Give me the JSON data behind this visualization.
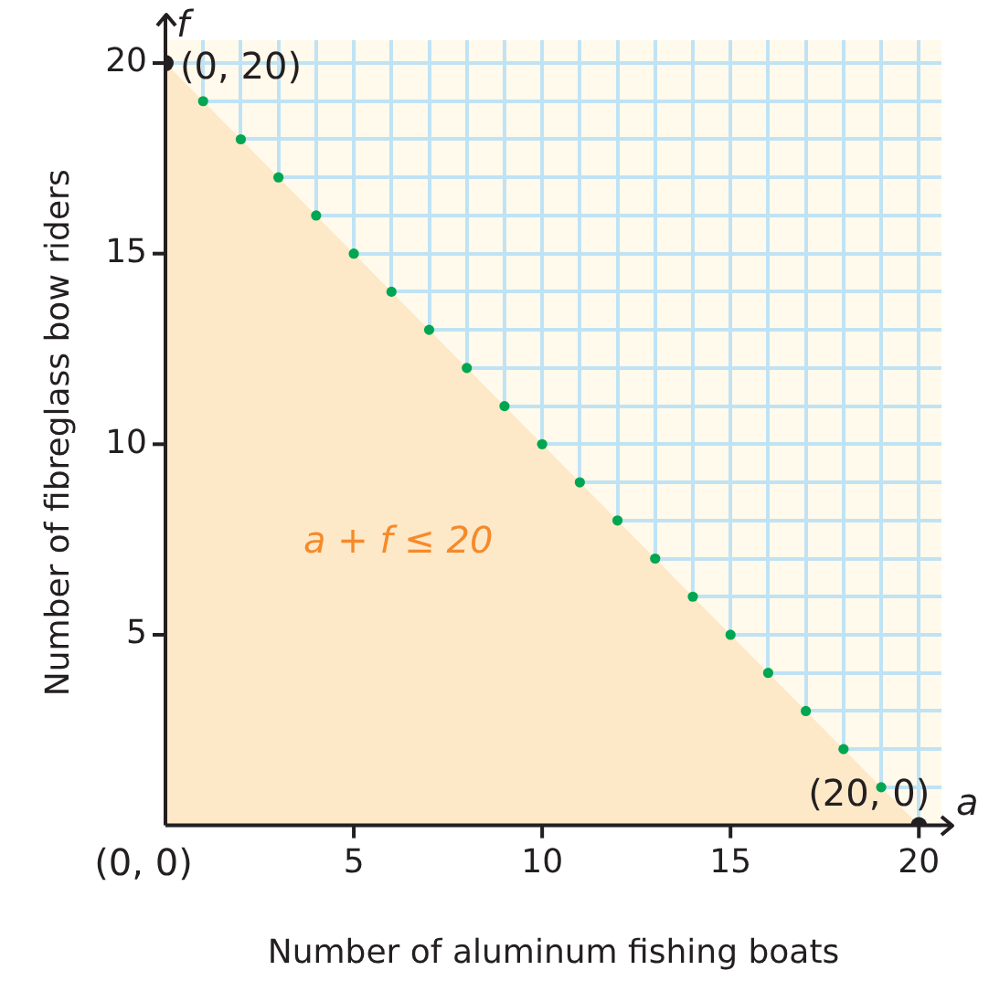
{
  "chart_data": {
    "type": "area",
    "xlabel": "Number of aluminum fishing boats",
    "ylabel": "Number of fibreglass bow riders",
    "xlim": [
      0,
      20.6
    ],
    "ylim": [
      0,
      20.6
    ],
    "xticks": [
      {
        "value": 0,
        "label": null
      },
      {
        "value": 1,
        "label": null
      },
      {
        "value": 2,
        "label": null
      },
      {
        "value": 3,
        "label": null
      },
      {
        "value": 4,
        "label": null
      },
      5,
      {
        "value": 6,
        "label": null
      },
      {
        "value": 7,
        "label": null
      },
      {
        "value": 8,
        "label": null
      },
      {
        "value": 9,
        "label": null
      },
      10,
      {
        "value": 11,
        "label": null
      },
      {
        "value": 12,
        "label": null
      },
      {
        "value": 13,
        "label": null
      },
      {
        "value": 14,
        "label": null
      },
      15,
      {
        "value": 16,
        "label": null
      },
      {
        "value": 17,
        "label": null
      },
      {
        "value": 18,
        "label": null
      },
      {
        "value": 19,
        "label": null
      },
      20
    ],
    "yticks": [
      {
        "value": 0,
        "label": null
      },
      {
        "value": 1,
        "label": null
      },
      {
        "value": 2,
        "label": null
      },
      {
        "value": 3,
        "label": null
      },
      {
        "value": 4,
        "label": null
      },
      5,
      {
        "value": 6,
        "label": null
      },
      {
        "value": 7,
        "label": null
      },
      {
        "value": 8,
        "label": null
      },
      {
        "value": 9,
        "label": null
      },
      10,
      {
        "value": 11,
        "label": null
      },
      {
        "value": 12,
        "label": null
      },
      {
        "value": 13,
        "label": null
      },
      {
        "value": 14,
        "label": null
      },
      15,
      {
        "value": 16,
        "label": null
      },
      {
        "value": 17,
        "label": null
      },
      {
        "value": 18,
        "label": null
      },
      {
        "value": 19,
        "label": null
      },
      20
    ],
    "grid": true,
    "legend": false,
    "series": [
      {
        "color": "#fde8c8",
        "marker": "none",
        "x": [
          0,
          20
        ],
        "values": [
          20,
          0
        ]
      },
      {
        "type": "scatter",
        "color": "#00a651",
        "marker": "circle",
        "x": [
          1,
          2,
          3,
          4,
          5,
          6,
          7,
          8,
          9,
          10,
          11,
          12,
          13,
          14,
          15,
          16,
          17,
          18,
          19
        ],
        "values": [
          19,
          18,
          17,
          16,
          15,
          14,
          13,
          12,
          11,
          10,
          9,
          8,
          7,
          6,
          5,
          4,
          3,
          2,
          1
        ]
      },
      {
        "type": "scatter",
        "color": "#231f20",
        "marker": "circle",
        "x": [
          0,
          20
        ],
        "values": [
          20,
          0
        ]
      }
    ],
    "annotations": [
      "(0, 20)",
      "(20, 0)",
      "(0, 0)",
      "a + f ≤ 20",
      "f",
      "a"
    ]
  }
}
